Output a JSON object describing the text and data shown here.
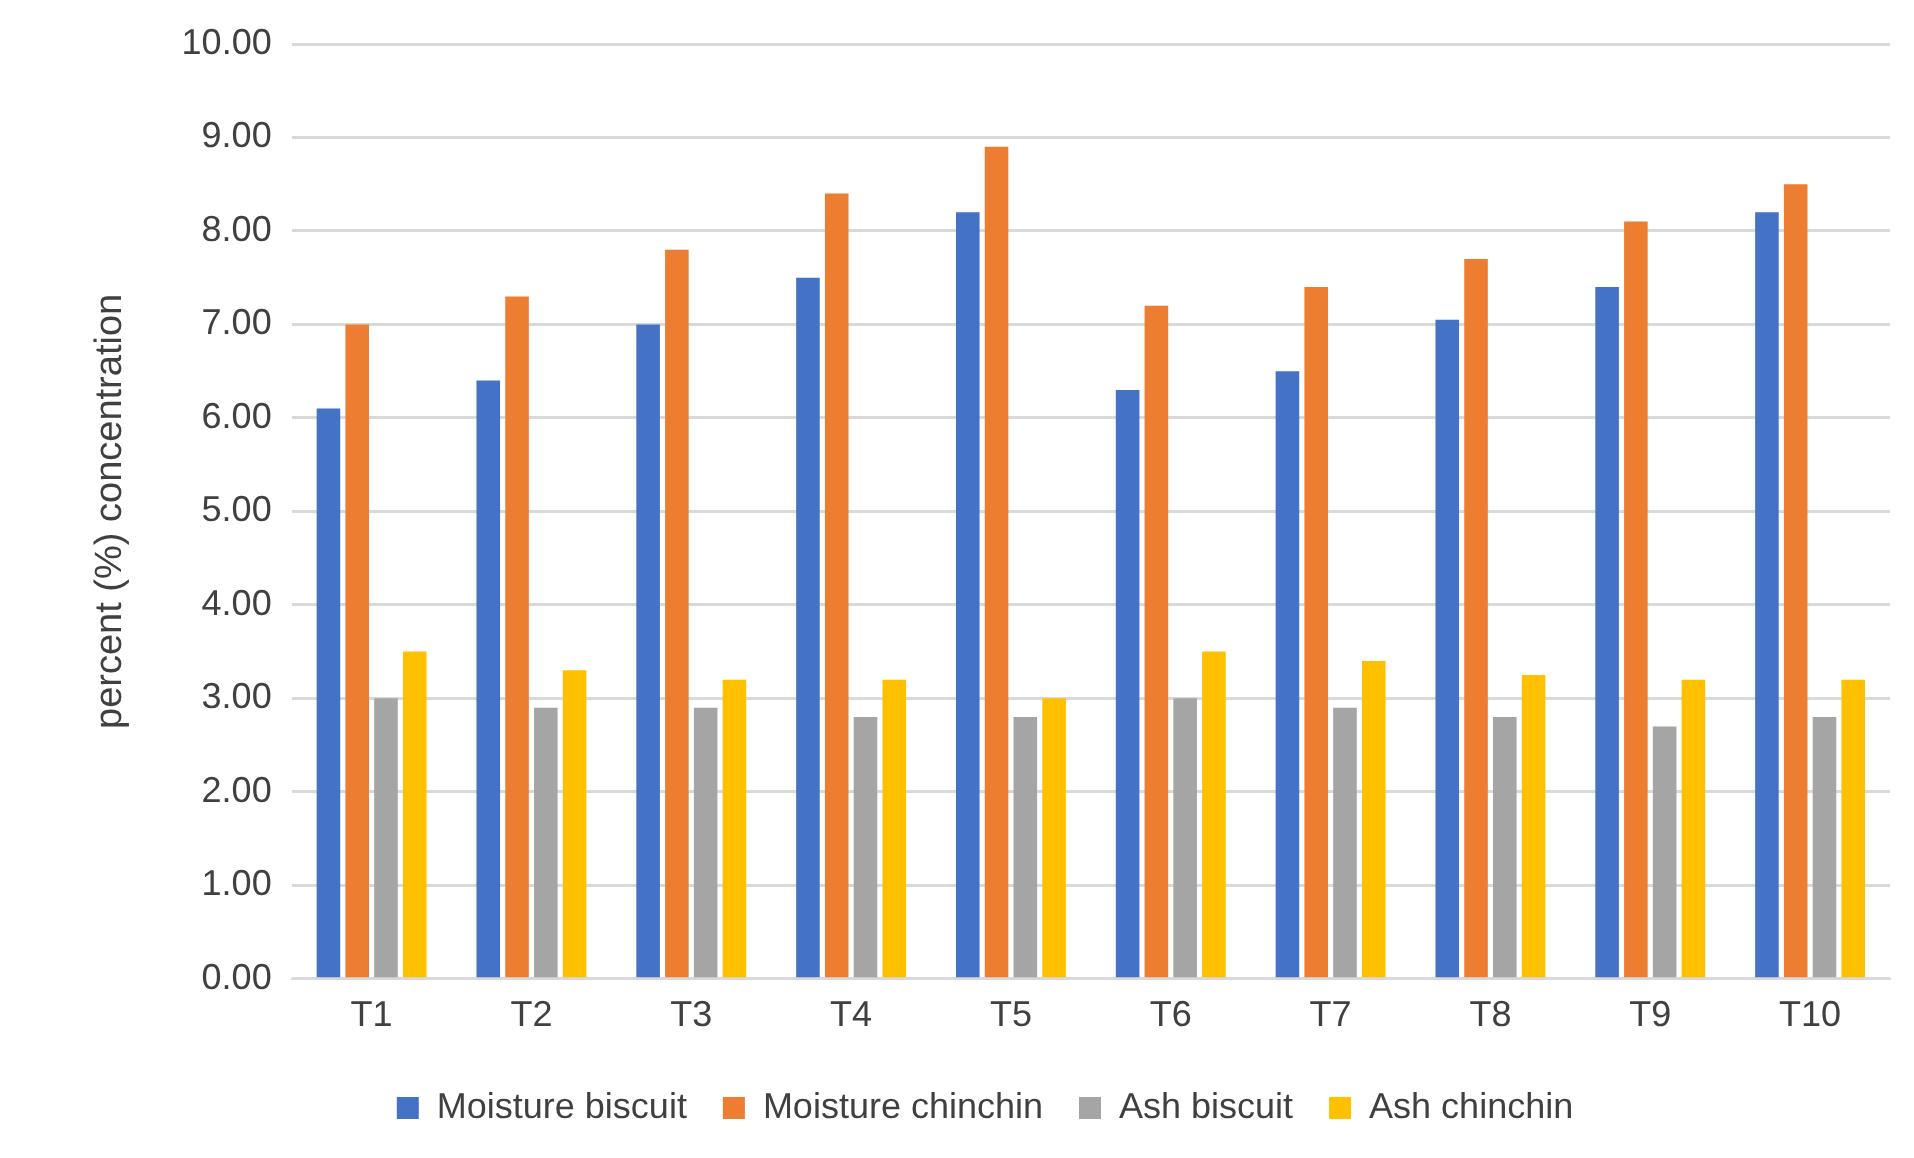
{
  "chart_data": {
    "type": "bar",
    "ylabel": "percent (%) concentration",
    "categories": [
      "T1",
      "T2",
      "T3",
      "T4",
      "T5",
      "T6",
      "T7",
      "T8",
      "T9",
      "T10"
    ],
    "series": [
      {
        "name": "Moisture biscuit",
        "color": "#4472c4",
        "values": [
          6.1,
          6.4,
          7.0,
          7.5,
          8.2,
          6.3,
          6.5,
          7.05,
          7.4,
          8.2
        ]
      },
      {
        "name": "Moisture chinchin",
        "color": "#ed7d31",
        "values": [
          7.0,
          7.3,
          7.8,
          8.4,
          8.9,
          7.2,
          7.4,
          7.7,
          8.1,
          8.5
        ]
      },
      {
        "name": "Ash biscuit",
        "color": "#a5a5a5",
        "values": [
          3.0,
          2.9,
          2.9,
          2.8,
          2.8,
          3.0,
          2.9,
          2.8,
          2.7,
          2.8
        ]
      },
      {
        "name": "Ash chinchin",
        "color": "#ffc000",
        "values": [
          3.5,
          3.3,
          3.2,
          3.2,
          3.0,
          3.5,
          3.4,
          3.25,
          3.2,
          3.2
        ]
      }
    ],
    "ylim": [
      0,
      10
    ],
    "yticks": [
      {
        "value": 0,
        "label": "0.00"
      },
      {
        "value": 1,
        "label": "1.00"
      },
      {
        "value": 2,
        "label": "2.00"
      },
      {
        "value": 3,
        "label": "3.00"
      },
      {
        "value": 4,
        "label": "4.00"
      },
      {
        "value": 5,
        "label": "5.00"
      },
      {
        "value": 6,
        "label": "6.00"
      },
      {
        "value": 7,
        "label": "7.00"
      },
      {
        "value": 8,
        "label": "8.00"
      },
      {
        "value": 9,
        "label": "9.00"
      },
      {
        "value": 10,
        "label": "10.00"
      }
    ],
    "grid": "y",
    "legend": "bottom"
  }
}
